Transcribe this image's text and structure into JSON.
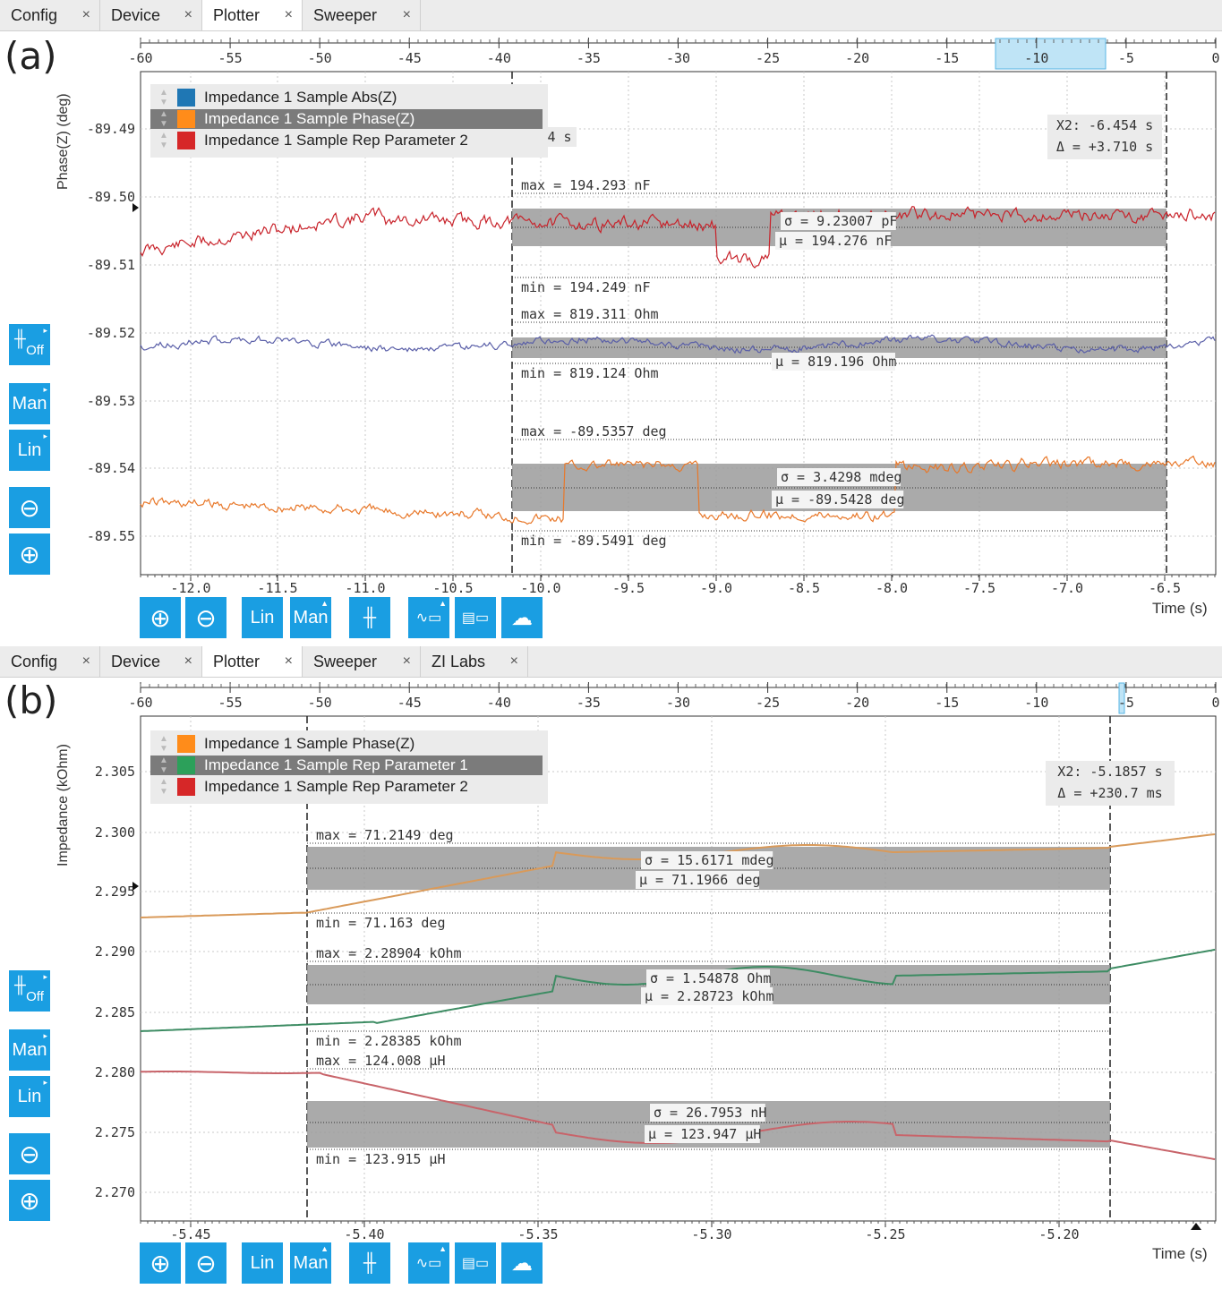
{
  "panels": [
    {
      "label": "(a)",
      "tabs": [
        {
          "label": "Config",
          "active": false
        },
        {
          "label": "Device",
          "active": false
        },
        {
          "label": "Plotter",
          "active": true
        },
        {
          "label": "Sweeper",
          "active": false
        }
      ],
      "close_glyph": "×",
      "ylabel": "Phase(Z) (deg)",
      "xlabel": "Time (s)",
      "overview_ticks": [
        "-60",
        "-55",
        "-50",
        "-45",
        "-40",
        "-35",
        "-30",
        "-25",
        "-20",
        "-15",
        "-10",
        "-5",
        "0"
      ],
      "y_ticks": [
        "-89.49",
        "-89.50",
        "-89.51",
        "-89.52",
        "-89.53",
        "-89.54",
        "-89.55"
      ],
      "x_ticks": [
        "-12.0",
        "-11.5",
        "-11.0",
        "-10.5",
        "-10.0",
        "-9.5",
        "-9.0",
        "-8.5",
        "-8.0",
        "-7.5",
        "-7.0",
        "-6.5"
      ],
      "legend": [
        {
          "label": "Impedance 1 Sample Abs(Z)",
          "color": "#1f77b4",
          "selected": false
        },
        {
          "label": "Impedance 1 Sample Phase(Z)",
          "color": "#ff8c1a",
          "selected": true
        },
        {
          "label": "Impedance 1 Sample Rep Parameter 2",
          "color": "#d62728",
          "selected": false
        }
      ],
      "legend_overflow": "4 s",
      "cursor": {
        "x2": "X2: -6.454 s",
        "delta": "Δ = +3.710 s"
      },
      "stats": [
        {
          "max": "max = 194.293 nF",
          "sigma": "σ = 9.23007 pF",
          "mu": "μ = 194.276 nF",
          "min": "min = 194.249 nF"
        },
        {
          "max": "max = 819.311 Ohm",
          "sigma": "",
          "mu": "μ = 819.196 Ohm",
          "min": "min = 819.124 Ohm"
        },
        {
          "max": "max = -89.5357 deg",
          "sigma": "σ = 3.4298 mdeg",
          "mu": "μ = -89.5428 deg",
          "min": "min = -89.5491 deg"
        }
      ],
      "side_buttons": [
        "Off",
        "Man",
        "Lin",
        "zoom-out",
        "zoom-in"
      ],
      "bottom_buttons": [
        "zoom-in",
        "zoom-out",
        "Lin",
        "Man",
        "cursor",
        "export",
        "table",
        "cloud"
      ]
    },
    {
      "label": "(b)",
      "tabs": [
        {
          "label": "Config",
          "active": false
        },
        {
          "label": "Device",
          "active": false
        },
        {
          "label": "Plotter",
          "active": true
        },
        {
          "label": "Sweeper",
          "active": false
        },
        {
          "label": "ZI Labs",
          "active": false
        }
      ],
      "close_glyph": "×",
      "ylabel": "Impedance (kOhm)",
      "xlabel": "Time (s)",
      "overview_ticks": [
        "-60",
        "-55",
        "-50",
        "-45",
        "-40",
        "-35",
        "-30",
        "-25",
        "-20",
        "-15",
        "-10",
        "-5",
        "0"
      ],
      "y_ticks": [
        "2.305",
        "2.300",
        "2.295",
        "2.290",
        "2.285",
        "2.280",
        "2.275",
        "2.270"
      ],
      "x_ticks": [
        "-5.45",
        "-5.40",
        "-5.35",
        "-5.30",
        "-5.25",
        "-5.20"
      ],
      "legend": [
        {
          "label": "Impedance 1 Sample Phase(Z)",
          "color": "#ff8c1a",
          "selected": false
        },
        {
          "label": "Impedance 1 Sample Rep Parameter 1",
          "color": "#2ca05a",
          "selected": true
        },
        {
          "label": "Impedance 1 Sample Rep Parameter 2",
          "color": "#d62728",
          "selected": false
        }
      ],
      "legend_overflow": "",
      "cursor": {
        "x2": "X2: -5.1857 s",
        "delta": "Δ = +230.7 ms"
      },
      "stats": [
        {
          "max": "max = 71.2149 deg",
          "sigma": "σ = 15.6171 mdeg",
          "mu": "μ = 71.1966 deg",
          "min": "min = 71.163 deg"
        },
        {
          "max": "max = 2.28904 kOhm",
          "sigma": "σ = 1.54878 Ohm",
          "mu": "μ = 2.28723 kOhm",
          "min": "min = 2.28385 kOhm"
        },
        {
          "max": "max = 124.008 μH",
          "sigma": "σ = 26.7953 nH",
          "mu": "μ = 123.947 μH",
          "min": "min = 123.915 μH"
        }
      ],
      "side_buttons": [
        "Off",
        "Man",
        "Lin",
        "zoom-out",
        "zoom-in"
      ],
      "bottom_buttons": [
        "zoom-in",
        "zoom-out",
        "Lin",
        "Man",
        "cursor",
        "export",
        "table",
        "cloud"
      ]
    }
  ],
  "colors": {
    "accent": "#1a9ee2",
    "abs": "#1f77b4",
    "phase": "#ff8c1a",
    "rep1": "#2ca05a",
    "rep2": "#d62728",
    "band": "#9b9b9b"
  }
}
